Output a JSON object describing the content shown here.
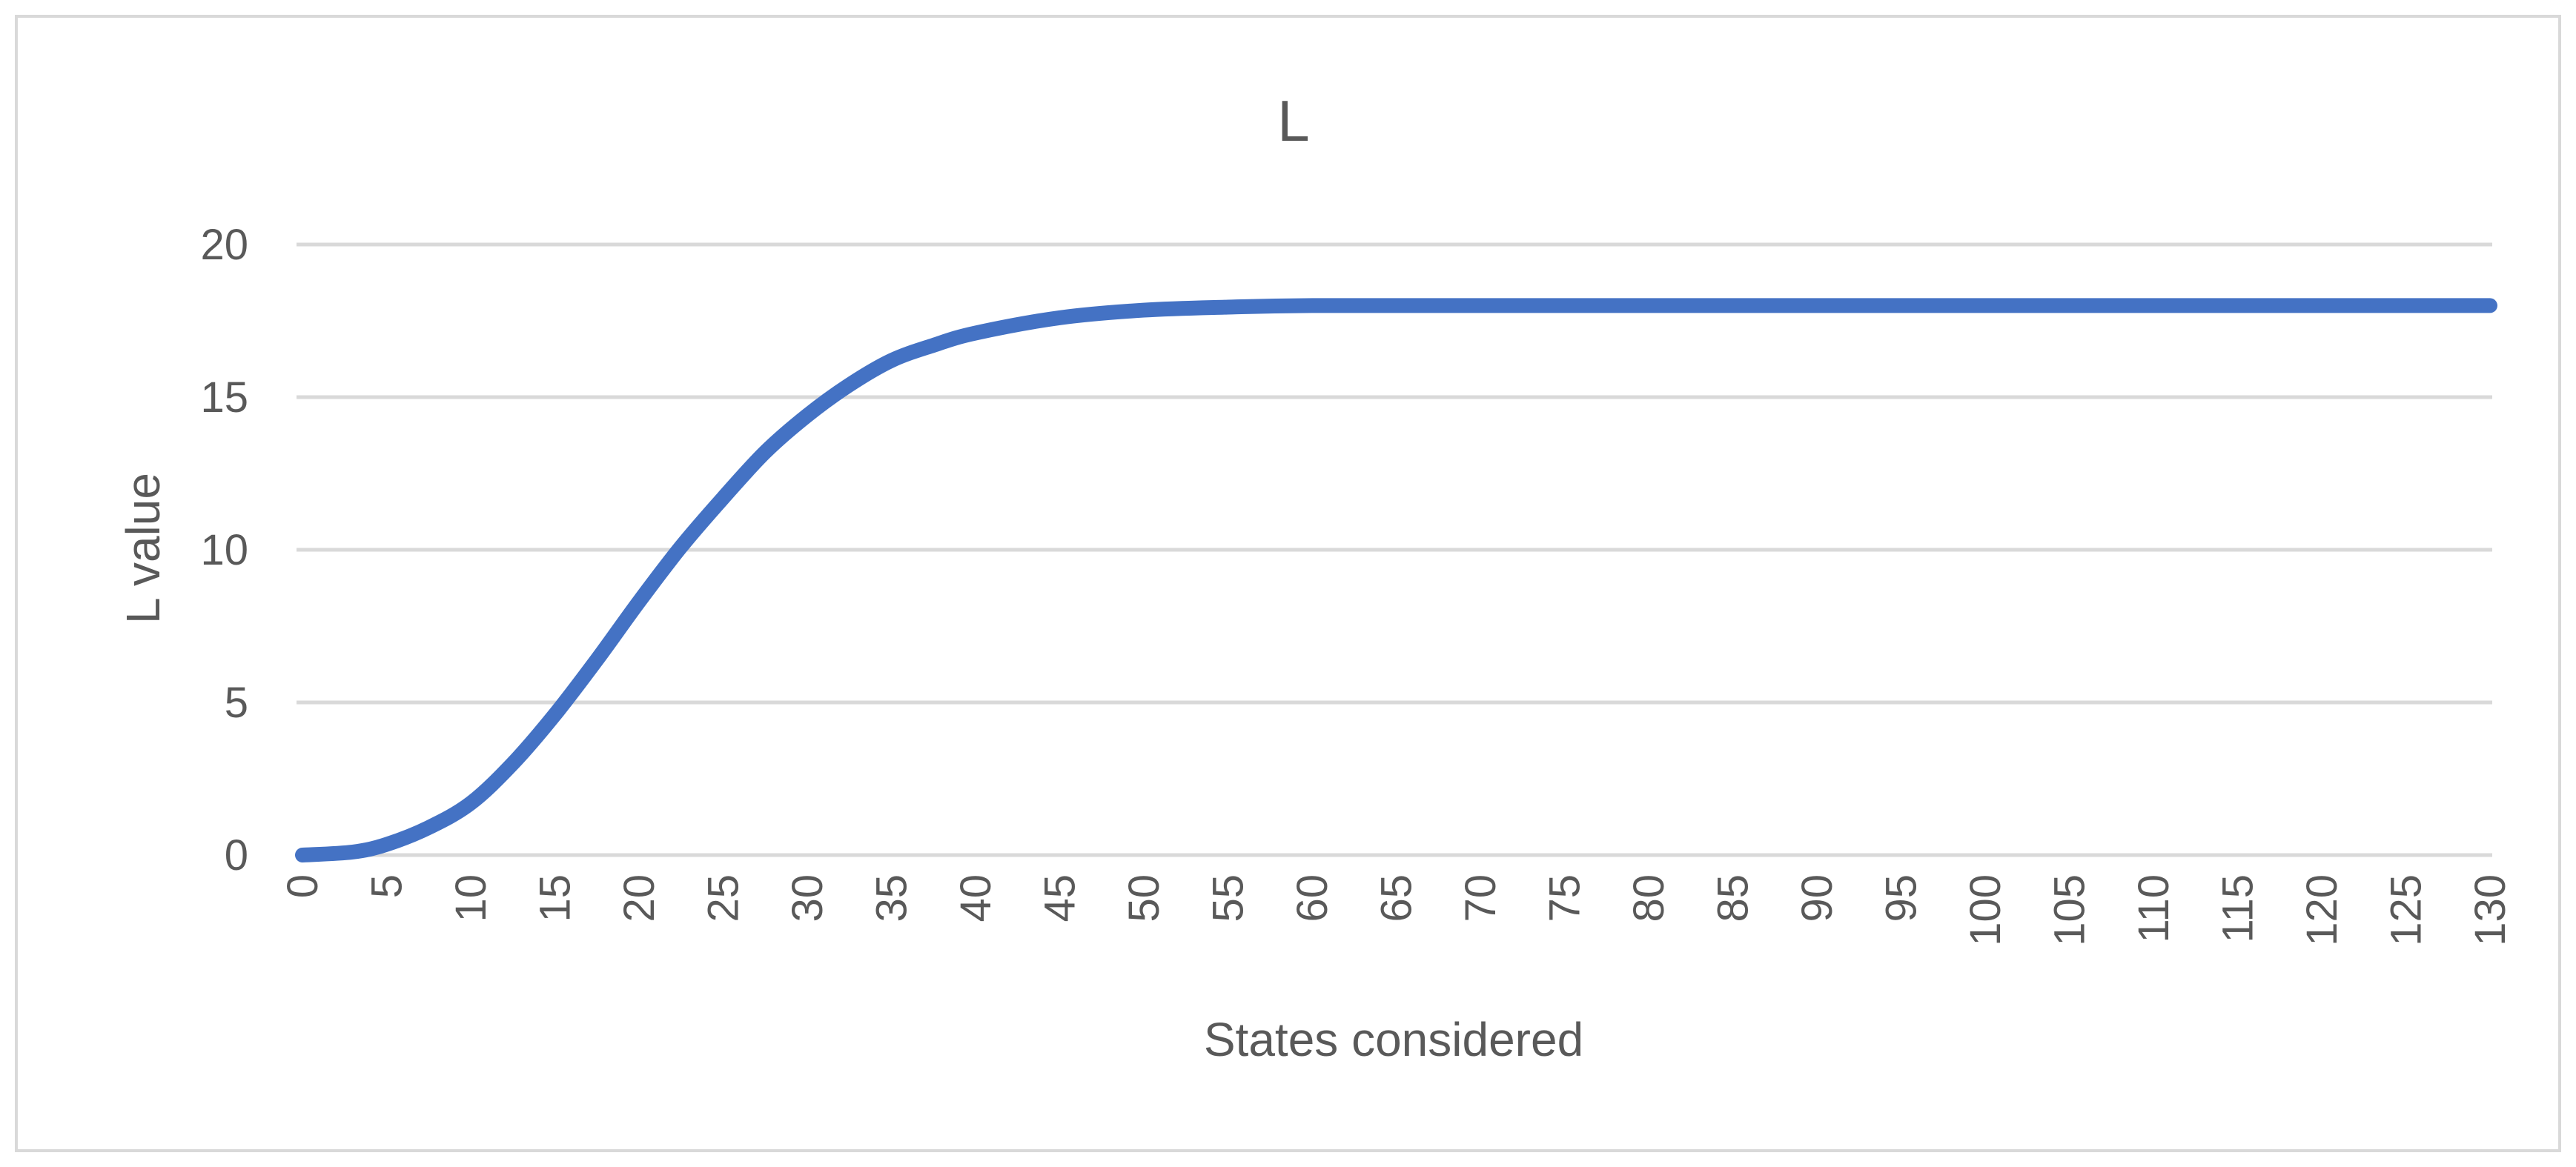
{
  "chart_data": {
    "type": "line",
    "title": "L",
    "xlabel": "States considered",
    "ylabel": "L value",
    "xlim": [
      0,
      130
    ],
    "ylim": [
      0,
      20
    ],
    "x_ticks": [
      "0",
      "5",
      "10",
      "15",
      "20",
      "25",
      "30",
      "35",
      "40",
      "45",
      "50",
      "55",
      "60",
      "65",
      "70",
      "75",
      "80",
      "85",
      "90",
      "95",
      "100",
      "105",
      "110",
      "115",
      "120",
      "125",
      "130"
    ],
    "y_ticks": [
      "0",
      "5",
      "10",
      "15",
      "20"
    ],
    "grid": true,
    "legend": "none",
    "series": [
      {
        "color": "#4472C4",
        "x": [
          0,
          3,
          5,
          7.5,
          10,
          12.5,
          15,
          17.5,
          20,
          22.5,
          25,
          27.5,
          30,
          32.5,
          35,
          37.5,
          40,
          45,
          50,
          55,
          60,
          70,
          80,
          90,
          100,
          110,
          120,
          130
        ],
        "y": [
          0,
          0.1,
          0.35,
          0.9,
          1.7,
          3.0,
          4.6,
          6.4,
          8.3,
          10.1,
          11.7,
          13.2,
          14.4,
          15.4,
          16.2,
          16.7,
          17.1,
          17.6,
          17.85,
          17.95,
          18.0,
          18.0,
          18.0,
          18.0,
          18.0,
          18.0,
          18.0,
          18.0
        ]
      }
    ]
  }
}
